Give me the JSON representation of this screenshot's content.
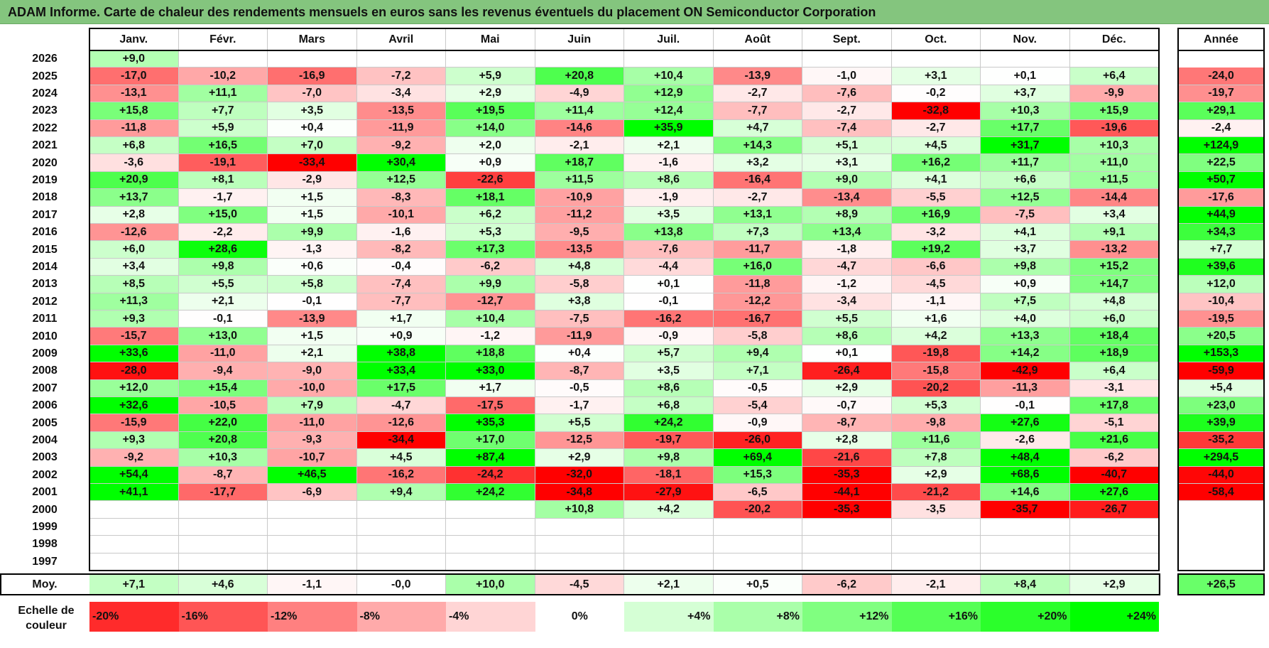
{
  "title": "ADAM Informe. Carte de chaleur des rendements mensuels en euros sans les revenus éventuels du placement ON Semiconductor Corporation",
  "chart_data": {
    "type": "heatmap",
    "columns": [
      "Janv.",
      "Févr.",
      "Mars",
      "Avril",
      "Mai",
      "Juin",
      "Juil.",
      "Août",
      "Sept.",
      "Oct.",
      "Nov.",
      "Déc."
    ],
    "year_column_label": "Année",
    "rows": [
      {
        "year": "2026",
        "values": [
          "+9,0",
          "",
          "",
          "",
          "",
          "",
          "",
          "",
          "",
          "",
          "",
          ""
        ],
        "annual": ""
      },
      {
        "year": "2025",
        "values": [
          "-17,0",
          "-10,2",
          "-16,9",
          "-7,2",
          "+5,9",
          "+20,8",
          "+10,4",
          "-13,9",
          "-1,0",
          "+3,1",
          "+0,1",
          "+6,4"
        ],
        "annual": "-24,0"
      },
      {
        "year": "2024",
        "values": [
          "-13,1",
          "+11,1",
          "-7,0",
          "-3,4",
          "+2,9",
          "-4,9",
          "+12,9",
          "-2,7",
          "-7,6",
          "-0,2",
          "+3,7",
          "-9,9"
        ],
        "annual": "-19,7"
      },
      {
        "year": "2023",
        "values": [
          "+15,8",
          "+7,7",
          "+3,5",
          "-13,5",
          "+19,5",
          "+11,4",
          "+12,4",
          "-7,7",
          "-2,7",
          "-32,8",
          "+10,3",
          "+15,9"
        ],
        "annual": "+29,1"
      },
      {
        "year": "2022",
        "values": [
          "-11,8",
          "+5,9",
          "+0,4",
          "-11,9",
          "+14,0",
          "-14,6",
          "+35,9",
          "+4,7",
          "-7,4",
          "-2,7",
          "+17,7",
          "-19,6"
        ],
        "annual": "-2,4"
      },
      {
        "year": "2021",
        "values": [
          "+6,8",
          "+16,5",
          "+7,0",
          "-9,2",
          "+2,0",
          "-2,1",
          "+2,1",
          "+14,3",
          "+5,1",
          "+4,5",
          "+31,7",
          "+10,3"
        ],
        "annual": "+124,9"
      },
      {
        "year": "2020",
        "values": [
          "-3,6",
          "-19,1",
          "-33,4",
          "+30,4",
          "+0,9",
          "+18,7",
          "-1,6",
          "+3,2",
          "+3,1",
          "+16,2",
          "+11,7",
          "+11,0"
        ],
        "annual": "+22,5"
      },
      {
        "year": "2019",
        "values": [
          "+20,9",
          "+8,1",
          "-2,9",
          "+12,5",
          "-22,6",
          "+11,5",
          "+8,6",
          "-16,4",
          "+9,0",
          "+4,1",
          "+6,6",
          "+11,5"
        ],
        "annual": "+50,7"
      },
      {
        "year": "2018",
        "values": [
          "+13,7",
          "-1,7",
          "+1,5",
          "-8,3",
          "+18,1",
          "-10,9",
          "-1,9",
          "-2,7",
          "-13,4",
          "-5,5",
          "+12,5",
          "-14,4"
        ],
        "annual": "-17,6"
      },
      {
        "year": "2017",
        "values": [
          "+2,8",
          "+15,0",
          "+1,5",
          "-10,1",
          "+6,2",
          "-11,2",
          "+3,5",
          "+13,1",
          "+8,9",
          "+16,9",
          "-7,5",
          "+3,4"
        ],
        "annual": "+44,9"
      },
      {
        "year": "2016",
        "values": [
          "-12,6",
          "-2,2",
          "+9,9",
          "-1,6",
          "+5,3",
          "-9,5",
          "+13,8",
          "+7,3",
          "+13,4",
          "-3,2",
          "+4,1",
          "+9,1"
        ],
        "annual": "+34,3"
      },
      {
        "year": "2015",
        "values": [
          "+6,0",
          "+28,6",
          "-1,3",
          "-8,2",
          "+17,3",
          "-13,5",
          "-7,6",
          "-11,7",
          "-1,8",
          "+19,2",
          "+3,7",
          "-13,2"
        ],
        "annual": "+7,7"
      },
      {
        "year": "2014",
        "values": [
          "+3,4",
          "+9,8",
          "+0,6",
          "-0,4",
          "-6,2",
          "+4,8",
          "-4,4",
          "+16,0",
          "-4,7",
          "-6,6",
          "+9,8",
          "+15,2"
        ],
        "annual": "+39,6"
      },
      {
        "year": "2013",
        "values": [
          "+8,5",
          "+5,5",
          "+5,8",
          "-7,4",
          "+9,9",
          "-5,8",
          "+0,1",
          "-11,8",
          "-1,2",
          "-4,5",
          "+0,9",
          "+14,7"
        ],
        "annual": "+12,0"
      },
      {
        "year": "2012",
        "values": [
          "+11,3",
          "+2,1",
          "-0,1",
          "-7,7",
          "-12,7",
          "+3,8",
          "-0,1",
          "-12,2",
          "-3,4",
          "-1,1",
          "+7,5",
          "+4,8"
        ],
        "annual": "-10,4"
      },
      {
        "year": "2011",
        "values": [
          "+9,3",
          "-0,1",
          "-13,9",
          "+1,7",
          "+10,4",
          "-7,5",
          "-16,2",
          "-16,7",
          "+5,5",
          "+1,6",
          "+4,0",
          "+6,0"
        ],
        "annual": "-19,5"
      },
      {
        "year": "2010",
        "values": [
          "-15,7",
          "+13,0",
          "+1,5",
          "+0,9",
          "-1,2",
          "-11,9",
          "-0,9",
          "-5,8",
          "+8,6",
          "+4,2",
          "+13,3",
          "+18,4"
        ],
        "annual": "+20,5"
      },
      {
        "year": "2009",
        "values": [
          "+33,6",
          "-11,0",
          "+2,1",
          "+38,8",
          "+18,8",
          "+0,4",
          "+5,7",
          "+9,4",
          "+0,1",
          "-19,8",
          "+14,2",
          "+18,9"
        ],
        "annual": "+153,3"
      },
      {
        "year": "2008",
        "values": [
          "-28,0",
          "-9,4",
          "-9,0",
          "+33,4",
          "+33,0",
          "-8,7",
          "+3,5",
          "+7,1",
          "-26,4",
          "-15,8",
          "-42,9",
          "+6,4"
        ],
        "annual": "-59,9"
      },
      {
        "year": "2007",
        "values": [
          "+12,0",
          "+15,4",
          "-10,0",
          "+17,5",
          "+1,7",
          "-0,5",
          "+8,6",
          "-0,5",
          "+2,9",
          "-20,2",
          "-11,3",
          "-3,1"
        ],
        "annual": "+5,4"
      },
      {
        "year": "2006",
        "values": [
          "+32,6",
          "-10,5",
          "+7,9",
          "-4,7",
          "-17,5",
          "-1,7",
          "+6,8",
          "-5,4",
          "-0,7",
          "+5,3",
          "-0,1",
          "+17,8"
        ],
        "annual": "+23,0"
      },
      {
        "year": "2005",
        "values": [
          "-15,9",
          "+22,0",
          "-11,0",
          "-12,6",
          "+35,3",
          "+5,5",
          "+24,2",
          "-0,9",
          "-8,7",
          "-9,8",
          "+27,6",
          "-5,1"
        ],
        "annual": "+39,9"
      },
      {
        "year": "2004",
        "values": [
          "+9,3",
          "+20,8",
          "-9,3",
          "-34,4",
          "+17,0",
          "-12,5",
          "-19,7",
          "-26,0",
          "+2,8",
          "+11,6",
          "-2,6",
          "+21,6"
        ],
        "annual": "-35,2"
      },
      {
        "year": "2003",
        "values": [
          "-9,2",
          "+10,3",
          "-10,7",
          "+4,5",
          "+87,4",
          "+2,9",
          "+9,8",
          "+69,4",
          "-21,6",
          "+7,8",
          "+48,4",
          "-6,2"
        ],
        "annual": "+294,5"
      },
      {
        "year": "2002",
        "values": [
          "+54,4",
          "-8,7",
          "+46,5",
          "-16,2",
          "-24,2",
          "-32,0",
          "-18,1",
          "+15,3",
          "-35,3",
          "+2,9",
          "+68,6",
          "-40,7"
        ],
        "annual": "-44,0"
      },
      {
        "year": "2001",
        "values": [
          "+41,1",
          "-17,7",
          "-6,9",
          "+9,4",
          "+24,2",
          "-34,8",
          "-27,9",
          "-6,5",
          "-44,1",
          "-21,2",
          "+14,6",
          "+27,6"
        ],
        "annual": "-58,4"
      },
      {
        "year": "2000",
        "values": [
          "",
          "",
          "",
          "",
          "",
          "+10,8",
          "+4,2",
          "-20,2",
          "-35,3",
          "-3,5",
          "-35,7",
          "-26,7"
        ],
        "annual": ""
      },
      {
        "year": "1999",
        "values": [
          "",
          "",
          "",
          "",
          "",
          "",
          "",
          "",
          "",
          "",
          "",
          ""
        ],
        "annual": ""
      },
      {
        "year": "1998",
        "values": [
          "",
          "",
          "",
          "",
          "",
          "",
          "",
          "",
          "",
          "",
          "",
          ""
        ],
        "annual": ""
      },
      {
        "year": "1997",
        "values": [
          "",
          "",
          "",
          "",
          "",
          "",
          "",
          "",
          "",
          "",
          "",
          ""
        ],
        "annual": ""
      }
    ],
    "average": {
      "label": "Moy.",
      "values": [
        "+7,1",
        "+4,6",
        "-1,1",
        "-0,0",
        "+10,0",
        "-4,5",
        "+2,1",
        "+0,5",
        "-6,2",
        "-2,1",
        "+8,4",
        "+2,9"
      ],
      "annual": "+26,5"
    },
    "color_scale": {
      "label": "Echelle de couleur",
      "steps": [
        "-20%",
        "-16%",
        "-12%",
        "-8%",
        "-4%",
        "0%",
        "+4%",
        "+8%",
        "+12%",
        "+16%",
        "+20%",
        "+24%"
      ],
      "values": [
        -20,
        -16,
        -12,
        -8,
        -4,
        0,
        4,
        8,
        12,
        16,
        20,
        24
      ]
    }
  }
}
